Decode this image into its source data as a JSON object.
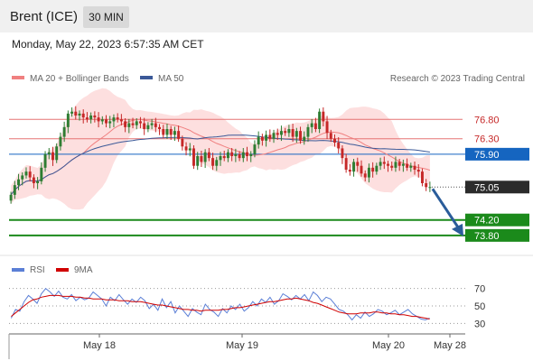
{
  "header": {
    "instrument": "Brent (ICE)",
    "timeframe": "30 MIN"
  },
  "datetime": "Monday, May 22, 2023 6:57:35 AM CET",
  "legend": {
    "ma20_label": "MA 20 + Bollinger Bands",
    "ma50_label": "MA 50",
    "credit": "Research © 2023 Trading Central",
    "rsi_label": "RSI",
    "ma9_label": "9MA"
  },
  "colors": {
    "candle_up": "#2e7d32",
    "candle_down": "#c62828",
    "bollinger": "#fdd9d9",
    "ma20": "#f08080",
    "ma50": "#3b5998",
    "resistance": "#e57373",
    "pivot": "#1565c0",
    "support": "#1b8a1b",
    "rsi": "#5b7fd6",
    "ma9": "#d00000"
  },
  "chart_data": [
    {
      "type": "candlestick",
      "ylim": [
        73.4,
        77.6
      ],
      "x_ticks": [
        "May 18",
        "May 19",
        "May 20",
        "May 28"
      ],
      "levels": [
        {
          "value": 76.8,
          "label": "76.80",
          "kind": "resistance"
        },
        {
          "value": 76.3,
          "label": "76.30",
          "kind": "resistance"
        },
        {
          "value": 75.9,
          "label": "75.90",
          "kind": "pivot"
        },
        {
          "value": 75.05,
          "label": "75.05",
          "kind": "last"
        },
        {
          "value": 74.2,
          "label": "74.20",
          "kind": "support"
        },
        {
          "value": 73.8,
          "label": "73.80",
          "kind": "support"
        }
      ],
      "close_series": [
        74.85,
        75.1,
        75.25,
        75.35,
        75.45,
        75.3,
        75.15,
        75.2,
        75.55,
        75.9,
        75.95,
        75.75,
        76.1,
        76.35,
        76.6,
        76.95,
        77.0,
        76.9,
        76.95,
        76.85,
        76.8,
        76.9,
        76.85,
        76.75,
        76.8,
        76.7,
        76.75,
        76.85,
        76.8,
        76.75,
        76.6,
        76.7,
        76.65,
        76.75,
        76.7,
        76.55,
        76.65,
        76.7,
        76.6,
        76.55,
        76.4,
        76.55,
        76.4,
        76.5,
        76.3,
        76.1,
        76.0,
        76.05,
        75.6,
        75.85,
        75.7,
        75.95,
        75.8,
        75.6,
        75.75,
        75.85,
        75.8,
        75.95,
        75.85,
        75.9,
        75.8,
        75.95,
        75.85,
        75.9,
        76.15,
        76.35,
        76.25,
        76.4,
        76.3,
        76.45,
        76.4,
        76.5,
        76.45,
        76.55,
        76.35,
        76.5,
        76.25,
        76.35,
        76.6,
        76.7,
        76.55,
        77.0,
        76.75,
        76.45,
        76.3,
        76.2,
        76.05,
        75.8,
        75.5,
        75.45,
        75.7,
        75.6,
        75.4,
        75.3,
        75.55,
        75.45,
        75.6,
        75.7,
        75.65,
        75.6,
        75.55,
        75.7,
        75.6,
        75.65,
        75.55,
        75.6,
        75.5,
        75.45,
        75.15,
        75.05,
        75.05
      ],
      "forecast_target": 73.8
    },
    {
      "type": "line",
      "title": "RSI",
      "ylim": [
        20,
        80
      ],
      "y_ticks": [
        70,
        50,
        30
      ],
      "series": [
        {
          "name": "RSI",
          "values": [
            36,
            46,
            44,
            55,
            62,
            58,
            53,
            64,
            70,
            66,
            61,
            67,
            60,
            58,
            63,
            56,
            60,
            57,
            59,
            66,
            62,
            58,
            50,
            60,
            56,
            63,
            57,
            52,
            58,
            54,
            60,
            56,
            47,
            52,
            45,
            58,
            48,
            55,
            42,
            50,
            44,
            38,
            47,
            43,
            40,
            52,
            46,
            43,
            38,
            47,
            42,
            50,
            46,
            52,
            44,
            48,
            55,
            50,
            58,
            54,
            60,
            52,
            56,
            64,
            61,
            57,
            62,
            58,
            63,
            56,
            66,
            62,
            55,
            60,
            58,
            52,
            46,
            44,
            40,
            34,
            40,
            36,
            43,
            38,
            41,
            46,
            44,
            40,
            42,
            45,
            40,
            43,
            46,
            41,
            38,
            35,
            34,
            36
          ]
        },
        {
          "name": "9MA",
          "values": [
            38,
            42,
            46,
            50,
            54,
            57,
            58,
            60,
            61,
            62,
            62,
            62,
            61,
            61,
            61,
            60,
            60,
            59,
            59,
            58,
            58,
            58,
            57,
            57,
            57,
            56,
            56,
            56,
            55,
            55,
            55,
            54,
            53,
            52,
            51,
            51,
            50,
            49,
            48,
            47,
            46,
            46,
            45,
            45,
            44,
            45,
            45,
            45,
            45,
            46,
            46,
            47,
            48,
            48,
            49,
            50,
            51,
            52,
            53,
            54,
            55,
            55,
            56,
            57,
            58,
            58,
            59,
            58,
            57,
            56,
            54,
            53,
            51,
            49,
            47,
            45,
            43,
            42,
            41,
            41,
            41,
            42,
            42,
            42,
            43,
            43,
            42,
            42,
            41,
            41,
            40,
            40,
            39,
            38,
            38,
            37,
            36,
            35
          ]
        }
      ]
    }
  ]
}
